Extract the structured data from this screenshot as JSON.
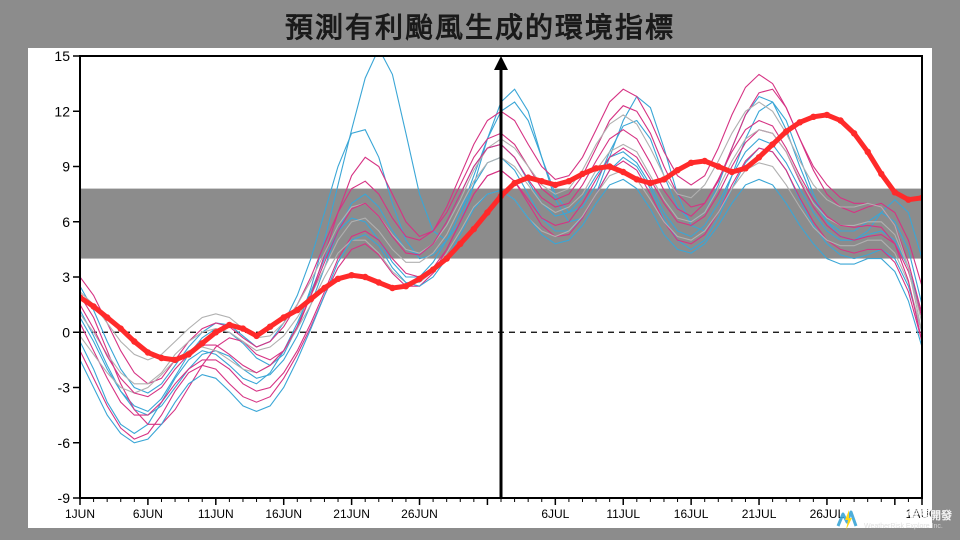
{
  "title": "預測有利颱風生成的環境指標",
  "chart": {
    "type": "line",
    "background_color": "#ffffff",
    "page_background": "#8c8c8c",
    "plot_border_color": "#000000",
    "plot_border_width": 2,
    "axis_font_size": 14,
    "axis_font_color": "#000000",
    "tick_color": "#000000",
    "tick_length_minor": 4,
    "tick_length_major": 7,
    "ylim": [
      -9,
      15
    ],
    "ytick_step": 3,
    "yticks": [
      -9,
      -6,
      -3,
      0,
      3,
      6,
      9,
      12,
      15
    ],
    "x_labels": [
      "1JUN",
      "6JUN",
      "11JUN",
      "16JUN",
      "21JUN",
      "26JUN",
      "",
      "6JUL",
      "11JUL",
      "16JUL",
      "21JUL",
      "26JUL",
      "1AUG"
    ],
    "x_index_range": [
      0,
      62
    ],
    "x_major_every": 5,
    "zero_line_y": 0,
    "zero_line_dash": "6,5",
    "zero_line_color": "#000000",
    "zero_line_width": 1.2,
    "grey_band": {
      "y_from": 4,
      "y_to": 7.8,
      "color": "#8c8c8c"
    },
    "arrow_x_index": 31,
    "arrow_color": "#000000",
    "arrow_width": 3,
    "ensemble_colors": {
      "blue": "#3aa6d6",
      "magenta": "#d63384",
      "grey": "#b0b0b0"
    },
    "ensemble_line_width": 1.1,
    "main_series": {
      "color": "#ff2a2a",
      "line_width": 5,
      "marker": "circle",
      "marker_size": 3.2,
      "values": [
        1.9,
        1.4,
        0.8,
        0.2,
        -0.5,
        -1.1,
        -1.4,
        -1.5,
        -1.2,
        -0.6,
        0.0,
        0.4,
        0.2,
        -0.2,
        0.3,
        0.8,
        1.2,
        1.8,
        2.4,
        2.9,
        3.1,
        3.0,
        2.7,
        2.4,
        2.5,
        2.9,
        3.4,
        4.0,
        4.8,
        5.6,
        6.5,
        7.4,
        8.1,
        8.4,
        8.2,
        8.0,
        8.2,
        8.6,
        8.9,
        9.0,
        8.7,
        8.3,
        8.1,
        8.3,
        8.8,
        9.2,
        9.3,
        9.0,
        8.7,
        8.9,
        9.5,
        10.2,
        10.9,
        11.4,
        11.7,
        11.8,
        11.5,
        10.8,
        9.8,
        8.6,
        7.6,
        7.2,
        7.3
      ]
    },
    "ensemble_series": [
      {
        "color": "blue",
        "values": [
          0.8,
          -0.5,
          -2.0,
          -3.2,
          -4.0,
          -4.3,
          -3.6,
          -2.4,
          -1.2,
          -0.3,
          0.2,
          0.0,
          -0.6,
          -1.4,
          -1.8,
          -1.2,
          0.3,
          2.4,
          5.0,
          8.0,
          11.0,
          13.8,
          15.4,
          14.0,
          10.8,
          7.5,
          5.5,
          5.0,
          6.0,
          8.0,
          10.5,
          12.5,
          13.2,
          12.0,
          9.5,
          7.2,
          6.0,
          6.2,
          7.5,
          9.5,
          11.5,
          12.8,
          12.2,
          10.0,
          7.5,
          5.8,
          5.5,
          6.5,
          8.5,
          10.5,
          12.0,
          12.5,
          11.5,
          9.5,
          7.5,
          6.0,
          5.2,
          5.0,
          5.5,
          6.5,
          7.2,
          6.5,
          4.0
        ]
      },
      {
        "color": "blue",
        "values": [
          2.5,
          1.2,
          -0.5,
          -2.0,
          -3.0,
          -3.3,
          -2.8,
          -1.8,
          -0.8,
          0.0,
          0.5,
          0.4,
          -0.2,
          -0.8,
          -0.5,
          0.5,
          2.0,
          4.0,
          6.5,
          9.0,
          10.8,
          11.0,
          9.5,
          7.0,
          5.0,
          4.0,
          4.2,
          5.0,
          6.5,
          8.5,
          10.5,
          12.0,
          12.5,
          11.5,
          9.5,
          7.5,
          6.5,
          6.8,
          8.0,
          9.8,
          11.2,
          11.5,
          10.5,
          8.5,
          6.8,
          6.0,
          6.5,
          8.0,
          10.0,
          11.8,
          12.8,
          12.5,
          11.0,
          9.0,
          7.2,
          6.0,
          5.5,
          5.5,
          6.0,
          6.5,
          6.0,
          4.5,
          1.5
        ]
      },
      {
        "color": "blue",
        "values": [
          -0.5,
          -2.0,
          -3.8,
          -5.0,
          -5.5,
          -5.0,
          -3.8,
          -2.5,
          -1.5,
          -1.0,
          -1.2,
          -1.8,
          -2.5,
          -2.8,
          -2.2,
          -1.0,
          0.5,
          2.2,
          4.0,
          5.5,
          6.2,
          6.0,
          5.0,
          3.8,
          3.0,
          3.0,
          3.8,
          5.0,
          6.5,
          8.0,
          9.2,
          9.5,
          8.8,
          7.5,
          6.2,
          5.5,
          5.5,
          6.2,
          7.5,
          8.8,
          9.5,
          9.0,
          7.8,
          6.2,
          5.0,
          4.5,
          5.0,
          6.2,
          7.8,
          9.2,
          10.0,
          9.8,
          8.8,
          7.2,
          5.8,
          4.8,
          4.2,
          4.0,
          4.2,
          4.5,
          4.0,
          2.5,
          0.0
        ]
      },
      {
        "color": "blue",
        "values": [
          1.2,
          -0.2,
          -1.8,
          -3.2,
          -4.2,
          -4.5,
          -4.0,
          -3.0,
          -2.0,
          -1.2,
          -1.0,
          -1.3,
          -2.0,
          -2.5,
          -2.3,
          -1.5,
          -0.2,
          1.5,
          3.5,
          5.5,
          7.0,
          7.5,
          6.8,
          5.5,
          4.5,
          4.2,
          4.8,
          6.0,
          7.5,
          9.0,
          10.0,
          10.2,
          9.5,
          8.2,
          7.0,
          6.3,
          6.5,
          7.3,
          8.5,
          9.5,
          9.8,
          9.2,
          8.0,
          6.5,
          5.5,
          5.2,
          5.8,
          7.0,
          8.5,
          9.8,
          10.5,
          10.2,
          9.2,
          7.8,
          6.5,
          5.5,
          5.0,
          5.0,
          5.3,
          5.5,
          5.0,
          3.5,
          1.0
        ]
      },
      {
        "color": "magenta",
        "values": [
          2.0,
          0.8,
          -1.0,
          -2.8,
          -4.2,
          -5.0,
          -5.0,
          -4.2,
          -3.0,
          -1.8,
          -0.8,
          -0.3,
          -0.5,
          -1.2,
          -1.5,
          -1.0,
          0.2,
          2.0,
          4.2,
          6.5,
          8.5,
          9.5,
          9.0,
          7.5,
          6.0,
          5.2,
          5.5,
          6.5,
          8.0,
          9.5,
          10.5,
          10.8,
          10.2,
          9.0,
          7.8,
          7.2,
          7.5,
          8.5,
          10.0,
          11.5,
          12.3,
          12.0,
          10.8,
          9.0,
          7.5,
          6.8,
          7.0,
          8.2,
          10.0,
          11.8,
          13.0,
          13.2,
          12.2,
          10.5,
          8.8,
          7.5,
          6.8,
          6.5,
          6.8,
          7.0,
          6.5,
          5.0,
          2.5
        ]
      },
      {
        "color": "magenta",
        "values": [
          0.5,
          -1.0,
          -2.5,
          -3.8,
          -4.5,
          -4.5,
          -3.8,
          -2.8,
          -2.0,
          -1.5,
          -1.5,
          -2.0,
          -2.8,
          -3.2,
          -3.0,
          -2.2,
          -1.0,
          0.5,
          2.2,
          4.0,
          5.2,
          5.5,
          5.0,
          4.0,
          3.2,
          3.0,
          3.5,
          4.5,
          6.0,
          7.5,
          8.5,
          8.8,
          8.2,
          7.2,
          6.2,
          5.8,
          6.0,
          7.0,
          8.3,
          9.5,
          10.0,
          9.5,
          8.3,
          7.0,
          6.0,
          5.8,
          6.3,
          7.5,
          9.0,
          10.3,
          11.0,
          10.8,
          9.8,
          8.2,
          6.8,
          5.8,
          5.2,
          5.0,
          5.2,
          5.3,
          4.8,
          3.3,
          0.8
        ]
      },
      {
        "color": "magenta",
        "values": [
          3.0,
          2.0,
          0.5,
          -1.0,
          -2.2,
          -2.8,
          -2.5,
          -1.5,
          -0.5,
          0.2,
          0.5,
          0.3,
          -0.3,
          -0.8,
          -0.5,
          0.3,
          1.5,
          3.0,
          4.8,
          6.5,
          7.8,
          8.2,
          7.5,
          6.2,
          5.2,
          5.0,
          5.5,
          6.8,
          8.5,
          10.2,
          11.5,
          12.0,
          11.5,
          10.2,
          9.0,
          8.3,
          8.5,
          9.5,
          11.0,
          12.5,
          13.2,
          12.8,
          11.5,
          9.8,
          8.5,
          8.0,
          8.5,
          10.0,
          11.8,
          13.3,
          14.0,
          13.5,
          12.2,
          10.5,
          9.0,
          8.0,
          7.3,
          7.0,
          7.0,
          6.8,
          5.8,
          3.8,
          1.0
        ]
      },
      {
        "color": "magenta",
        "values": [
          -1.0,
          -2.5,
          -4.0,
          -5.2,
          -5.8,
          -5.5,
          -4.5,
          -3.2,
          -2.2,
          -1.8,
          -2.0,
          -2.8,
          -3.5,
          -3.8,
          -3.5,
          -2.5,
          -1.2,
          0.3,
          2.0,
          3.5,
          4.5,
          4.8,
          4.2,
          3.2,
          2.5,
          2.5,
          3.2,
          4.5,
          6.0,
          7.5,
          8.5,
          8.8,
          8.2,
          7.0,
          5.8,
          5.2,
          5.3,
          6.2,
          7.5,
          8.8,
          9.3,
          8.8,
          7.5,
          6.0,
          5.0,
          4.8,
          5.3,
          6.5,
          8.0,
          9.3,
          10.0,
          9.8,
          8.8,
          7.3,
          6.0,
          5.0,
          4.5,
          4.3,
          4.5,
          4.5,
          3.8,
          2.2,
          -0.5
        ]
      },
      {
        "color": "grey",
        "values": [
          1.0,
          0.0,
          -1.2,
          -2.2,
          -2.8,
          -2.8,
          -2.2,
          -1.2,
          -0.5,
          0.0,
          0.2,
          0.0,
          -0.5,
          -1.0,
          -0.8,
          -0.2,
          0.8,
          2.0,
          3.5,
          5.0,
          6.0,
          6.2,
          5.5,
          4.5,
          3.8,
          3.8,
          4.3,
          5.3,
          6.8,
          8.2,
          9.2,
          9.5,
          9.0,
          8.0,
          7.0,
          6.5,
          6.8,
          7.5,
          8.8,
          9.8,
          10.2,
          9.8,
          8.5,
          7.2,
          6.2,
          6.0,
          6.5,
          7.8,
          9.3,
          10.5,
          11.0,
          10.8,
          9.8,
          8.3,
          7.0,
          6.2,
          5.8,
          5.8,
          6.0,
          6.0,
          5.3,
          3.5,
          0.5
        ]
      },
      {
        "color": "grey",
        "values": [
          2.2,
          1.5,
          0.5,
          -0.5,
          -1.2,
          -1.5,
          -1.2,
          -0.5,
          0.2,
          0.8,
          1.0,
          0.8,
          0.2,
          -0.3,
          -0.2,
          0.5,
          1.5,
          2.8,
          4.3,
          5.8,
          6.8,
          7.0,
          6.3,
          5.3,
          4.5,
          4.3,
          4.8,
          5.8,
          7.2,
          8.8,
          10.0,
          10.5,
          10.0,
          9.0,
          8.0,
          7.5,
          7.8,
          8.8,
          10.2,
          11.3,
          11.8,
          11.3,
          10.0,
          8.5,
          7.5,
          7.3,
          8.0,
          9.3,
          10.8,
          12.0,
          12.5,
          12.0,
          10.8,
          9.3,
          8.0,
          7.2,
          6.8,
          6.8,
          7.0,
          6.8,
          5.8,
          3.5,
          0.0
        ]
      },
      {
        "color": "grey",
        "values": [
          -0.2,
          -1.2,
          -2.2,
          -3.0,
          -3.3,
          -3.0,
          -2.3,
          -1.5,
          -1.0,
          -0.8,
          -1.0,
          -1.5,
          -2.0,
          -2.2,
          -1.8,
          -1.0,
          0.2,
          1.5,
          3.0,
          4.3,
          5.0,
          5.0,
          4.3,
          3.3,
          2.7,
          2.7,
          3.3,
          4.3,
          5.5,
          6.8,
          7.5,
          7.7,
          7.2,
          6.2,
          5.5,
          5.2,
          5.5,
          6.3,
          7.5,
          8.5,
          8.8,
          8.3,
          7.2,
          6.0,
          5.2,
          5.0,
          5.5,
          6.5,
          7.8,
          8.8,
          9.2,
          9.0,
          8.0,
          6.8,
          5.7,
          5.0,
          4.7,
          4.7,
          5.0,
          5.0,
          4.3,
          2.7,
          0.0
        ]
      },
      {
        "color": "blue",
        "values": [
          -1.5,
          -3.0,
          -4.5,
          -5.5,
          -6.0,
          -5.8,
          -5.0,
          -3.8,
          -2.8,
          -2.3,
          -2.5,
          -3.2,
          -4.0,
          -4.3,
          -4.0,
          -3.0,
          -1.5,
          0.2,
          2.0,
          3.8,
          5.0,
          5.3,
          4.7,
          3.5,
          2.7,
          2.5,
          3.0,
          4.0,
          5.3,
          6.7,
          7.5,
          7.7,
          7.2,
          6.2,
          5.3,
          4.8,
          5.0,
          5.8,
          7.0,
          8.0,
          8.3,
          7.8,
          6.7,
          5.3,
          4.5,
          4.3,
          4.8,
          5.8,
          7.0,
          8.0,
          8.3,
          8.0,
          7.0,
          5.8,
          4.8,
          4.0,
          3.7,
          3.7,
          4.0,
          4.0,
          3.3,
          1.7,
          -0.8
        ]
      },
      {
        "color": "magenta",
        "values": [
          1.5,
          0.2,
          -1.3,
          -2.5,
          -3.3,
          -3.5,
          -3.0,
          -2.0,
          -1.2,
          -0.7,
          -0.7,
          -1.2,
          -1.8,
          -2.2,
          -1.8,
          -1.0,
          0.3,
          2.0,
          3.8,
          5.5,
          6.7,
          7.0,
          6.3,
          5.2,
          4.3,
          4.2,
          4.8,
          6.0,
          7.5,
          9.0,
          10.0,
          10.2,
          9.5,
          8.3,
          7.3,
          6.8,
          7.0,
          8.0,
          9.3,
          10.5,
          11.0,
          10.5,
          9.2,
          7.7,
          6.7,
          6.3,
          7.0,
          8.3,
          9.8,
          11.0,
          11.5,
          11.2,
          10.0,
          8.5,
          7.2,
          6.3,
          5.8,
          5.7,
          5.8,
          5.7,
          4.8,
          2.8,
          -0.5
        ]
      }
    ]
  },
  "logo": {
    "text_main": "天氣風險管理開發",
    "text_sub": "WeatherRisk Explore Inc.",
    "bolt_color": "#ffd400",
    "w_color": "#3aa6d6"
  }
}
